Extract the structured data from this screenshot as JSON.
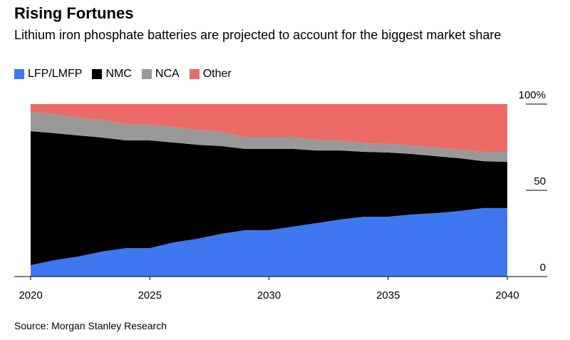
{
  "chart_data": {
    "type": "stacked-area",
    "title": "Rising Fortunes",
    "subtitle": "Lithium iron phosphate batteries are projected to account for the biggest market share",
    "source": "Source: Morgan Stanley Research",
    "x": [
      2020,
      2021,
      2022,
      2023,
      2024,
      2025,
      2026,
      2027,
      2028,
      2029,
      2030,
      2031,
      2032,
      2033,
      2034,
      2035,
      2036,
      2037,
      2038,
      2039,
      2040
    ],
    "xlim": [
      2020,
      2040
    ],
    "xticks": [
      2020,
      2025,
      2030,
      2035,
      2040
    ],
    "ylim": [
      0,
      100
    ],
    "yticks": [
      0,
      50,
      {
        "value": 100,
        "label": "100%"
      }
    ],
    "series": [
      {
        "name": "LFP/LMFP",
        "color": "#3f77f0",
        "values": [
          6.6,
          9.5,
          11.6,
          14.5,
          16.5,
          16.5,
          19.8,
          21.9,
          24.8,
          26.9,
          26.9,
          28.9,
          31,
          33.1,
          34.7,
          34.7,
          36,
          36.8,
          38,
          39.7,
          39.7
        ]
      },
      {
        "name": "NMC",
        "color": "#000000",
        "values": [
          77.7,
          73.6,
          70.2,
          66.1,
          62.4,
          62.4,
          57.9,
          54.5,
          50.8,
          47.1,
          47.1,
          45.1,
          42.1,
          40,
          37.6,
          37.2,
          35.1,
          33,
          30.6,
          27.2,
          26.8
        ]
      },
      {
        "name": "NCA",
        "color": "#999999",
        "values": [
          11.2,
          11.1,
          10.3,
          10.3,
          9.5,
          9.1,
          9.1,
          8.7,
          8.3,
          7,
          7,
          7,
          6.2,
          5.8,
          5,
          5,
          4.9,
          5,
          5,
          5.4,
          5.8
        ]
      },
      {
        "name": "Other",
        "color": "#ec6a66",
        "values": [
          4.5,
          5.8,
          7.9,
          9.1,
          11.6,
          12,
          13.2,
          14.9,
          16.1,
          19,
          19,
          19,
          20.7,
          21.1,
          22.7,
          23.1,
          24,
          25.2,
          26.4,
          27.7,
          27.7
        ]
      }
    ]
  }
}
